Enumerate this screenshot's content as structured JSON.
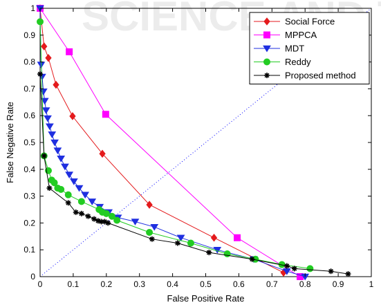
{
  "chart_data": {
    "type": "line",
    "xlabel": "False Positive Rate",
    "ylabel": "False Negative Rate",
    "xlim": [
      0,
      1
    ],
    "ylim": [
      0,
      1
    ],
    "x_ticks": [
      "0",
      "0.1",
      "0.2",
      "0.3",
      "0.4",
      "0.5",
      "0.6",
      "0.7",
      "0.8",
      "0.9",
      "1"
    ],
    "y_ticks": [
      "0",
      "0.1",
      "0.2",
      "0.3",
      "0.4",
      "0.5",
      "0.6",
      "0.7",
      "0.8",
      "0.9",
      "1"
    ],
    "legend_position": "top-right",
    "grid": false,
    "watermark": "SCIENCE AND TECH",
    "reference_line": {
      "style": "dotted",
      "color": "#0000ff",
      "from": [
        0,
        0
      ],
      "to": [
        1,
        1
      ]
    },
    "series": [
      {
        "name": "Social Force",
        "color": "#e41a1c",
        "marker": "diamond",
        "points": [
          [
            0,
            1.0
          ],
          [
            0.012,
            0.858
          ],
          [
            0.025,
            0.815
          ],
          [
            0.048,
            0.715
          ],
          [
            0.098,
            0.598
          ],
          [
            0.188,
            0.458
          ],
          [
            0.33,
            0.268
          ],
          [
            0.525,
            0.145
          ],
          [
            0.735,
            0.015
          ]
        ]
      },
      {
        "name": "MPPCA",
        "color": "#ff00ff",
        "marker": "square",
        "points": [
          [
            0,
            1.0
          ],
          [
            0.088,
            0.838
          ],
          [
            0.198,
            0.605
          ],
          [
            0.595,
            0.145
          ],
          [
            0.785,
            0.0
          ]
        ]
      },
      {
        "name": "MDT",
        "color": "#1f2fe0",
        "marker": "triangle-down",
        "points": [
          [
            0,
            1.0
          ],
          [
            0.003,
            0.79
          ],
          [
            0.006,
            0.745
          ],
          [
            0.01,
            0.69
          ],
          [
            0.014,
            0.655
          ],
          [
            0.018,
            0.62
          ],
          [
            0.023,
            0.59
          ],
          [
            0.029,
            0.56
          ],
          [
            0.036,
            0.53
          ],
          [
            0.044,
            0.5
          ],
          [
            0.053,
            0.47
          ],
          [
            0.063,
            0.44
          ],
          [
            0.075,
            0.41
          ],
          [
            0.088,
            0.38
          ],
          [
            0.102,
            0.355
          ],
          [
            0.118,
            0.33
          ],
          [
            0.136,
            0.305
          ],
          [
            0.157,
            0.28
          ],
          [
            0.18,
            0.26
          ],
          [
            0.207,
            0.24
          ],
          [
            0.235,
            0.22
          ],
          [
            0.287,
            0.205
          ],
          [
            0.345,
            0.185
          ],
          [
            0.425,
            0.145
          ],
          [
            0.535,
            0.1
          ],
          [
            0.645,
            0.065
          ],
          [
            0.745,
            0.02
          ],
          [
            0.8,
            0.0
          ]
        ]
      },
      {
        "name": "Reddy",
        "color": "#22cc22",
        "marker": "circle",
        "points": [
          [
            0,
            0.95
          ],
          [
            0.012,
            0.45
          ],
          [
            0.025,
            0.395
          ],
          [
            0.035,
            0.36
          ],
          [
            0.043,
            0.35
          ],
          [
            0.053,
            0.33
          ],
          [
            0.063,
            0.325
          ],
          [
            0.085,
            0.305
          ],
          [
            0.125,
            0.28
          ],
          [
            0.178,
            0.25
          ],
          [
            0.188,
            0.24
          ],
          [
            0.2,
            0.235
          ],
          [
            0.217,
            0.225
          ],
          [
            0.232,
            0.21
          ],
          [
            0.33,
            0.165
          ],
          [
            0.455,
            0.125
          ],
          [
            0.565,
            0.085
          ],
          [
            0.65,
            0.065
          ],
          [
            0.73,
            0.045
          ],
          [
            0.815,
            0.03
          ]
        ]
      },
      {
        "name": "Proposed method",
        "color": "#000000",
        "marker": "star",
        "points": [
          [
            0,
            0.755
          ],
          [
            0.012,
            0.45
          ],
          [
            0.028,
            0.33
          ],
          [
            0.085,
            0.275
          ],
          [
            0.108,
            0.24
          ],
          [
            0.125,
            0.235
          ],
          [
            0.145,
            0.225
          ],
          [
            0.163,
            0.215
          ],
          [
            0.175,
            0.208
          ],
          [
            0.185,
            0.205
          ],
          [
            0.195,
            0.205
          ],
          [
            0.205,
            0.2
          ],
          [
            0.338,
            0.14
          ],
          [
            0.415,
            0.125
          ],
          [
            0.51,
            0.09
          ],
          [
            0.64,
            0.065
          ],
          [
            0.745,
            0.04
          ],
          [
            0.768,
            0.03
          ],
          [
            0.878,
            0.02
          ],
          [
            0.93,
            0.01
          ]
        ]
      }
    ]
  }
}
